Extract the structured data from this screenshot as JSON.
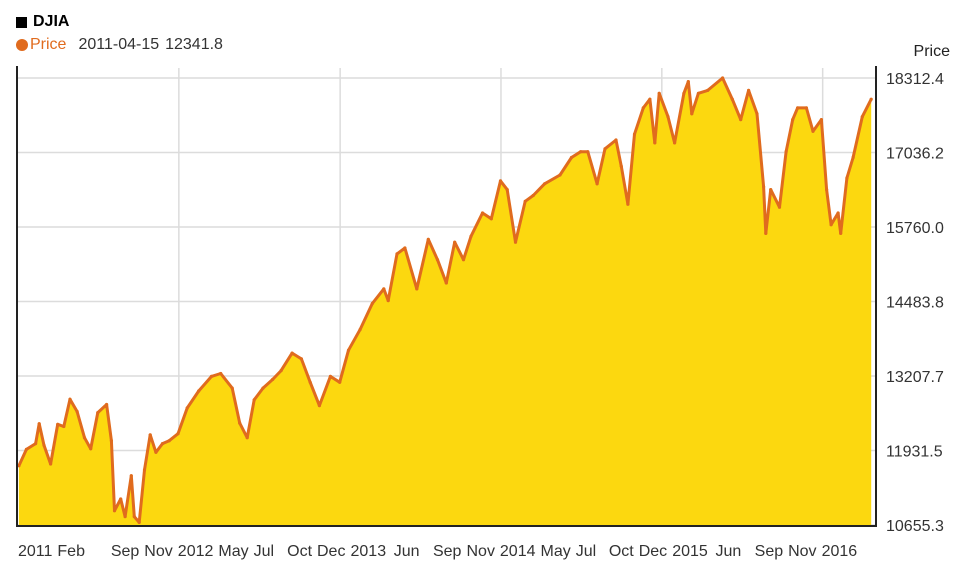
{
  "header": {
    "title": "DJIA",
    "legend": {
      "series_name": "Price",
      "date": "2011-04-15",
      "value": "12341.8"
    }
  },
  "colors": {
    "line": "#e06b1e",
    "fill": "#fcd80f",
    "grid": "#dcdcdc",
    "axis": "#222222",
    "title_swatch": "#000000"
  },
  "chart_data": {
    "type": "area",
    "title": "DJIA",
    "ylabel": "Price",
    "grid": true,
    "legend_position": "top-left",
    "ylim": [
      10655.3,
      18312.4
    ],
    "xlim": [
      "2011-01-01",
      "2016-05-01"
    ],
    "y_ticks": [
      "18312.4",
      "17036.2",
      "15760.0",
      "14483.8",
      "13207.7",
      "11931.5",
      "10655.3"
    ],
    "x_ticks": [
      {
        "label": "2011",
        "date": "2011-01-01"
      },
      {
        "label": "Feb",
        "date": "2011-02-15"
      },
      {
        "label": "Sep",
        "date": "2011-09-01"
      },
      {
        "label": "Nov",
        "date": "2011-11-01"
      },
      {
        "label": "2012",
        "date": "2012-01-01"
      },
      {
        "label": "May",
        "date": "2012-05-01"
      },
      {
        "label": "Jul",
        "date": "2012-07-01"
      },
      {
        "label": "Oct",
        "date": "2012-10-01"
      },
      {
        "label": "Dec",
        "date": "2012-12-01"
      },
      {
        "label": "2013",
        "date": "2013-01-01"
      },
      {
        "label": "Jun",
        "date": "2013-06-01"
      },
      {
        "label": "Sep",
        "date": "2013-09-01"
      },
      {
        "label": "Nov",
        "date": "2013-11-01"
      },
      {
        "label": "2014",
        "date": "2014-01-01"
      },
      {
        "label": "May",
        "date": "2014-05-01"
      },
      {
        "label": "Jul",
        "date": "2014-07-01"
      },
      {
        "label": "Oct",
        "date": "2014-10-01"
      },
      {
        "label": "Dec",
        "date": "2014-12-01"
      },
      {
        "label": "2015",
        "date": "2015-01-01"
      },
      {
        "label": "Jun",
        "date": "2015-06-01"
      },
      {
        "label": "Sep",
        "date": "2015-09-01"
      },
      {
        "label": "Nov",
        "date": "2015-11-01"
      },
      {
        "label": "2016",
        "date": "2016-01-01"
      }
    ],
    "x_grid_dates": [
      "2012-01-01",
      "2013-01-01",
      "2014-01-01",
      "2015-01-01",
      "2016-01-01"
    ],
    "series": [
      {
        "name": "Price",
        "x": [
          "2011-01-03",
          "2011-01-20",
          "2011-02-10",
          "2011-02-18",
          "2011-03-01",
          "2011-03-16",
          "2011-04-01",
          "2011-04-15",
          "2011-04-29",
          "2011-05-15",
          "2011-06-01",
          "2011-06-15",
          "2011-07-01",
          "2011-07-21",
          "2011-08-01",
          "2011-08-08",
          "2011-08-22",
          "2011-09-01",
          "2011-09-15",
          "2011-09-22",
          "2011-10-03",
          "2011-10-15",
          "2011-10-28",
          "2011-11-10",
          "2011-11-25",
          "2011-12-10",
          "2011-12-30",
          "2012-01-20",
          "2012-02-15",
          "2012-03-15",
          "2012-04-05",
          "2012-05-01",
          "2012-05-18",
          "2012-06-04",
          "2012-06-20",
          "2012-07-10",
          "2012-08-01",
          "2012-08-20",
          "2012-09-14",
          "2012-10-05",
          "2012-10-25",
          "2012-11-15",
          "2012-12-10",
          "2012-12-31",
          "2013-01-20",
          "2013-02-15",
          "2013-03-15",
          "2013-04-10",
          "2013-04-20",
          "2013-05-10",
          "2013-05-28",
          "2013-06-24",
          "2013-07-20",
          "2013-08-10",
          "2013-08-30",
          "2013-09-18",
          "2013-10-08",
          "2013-10-25",
          "2013-11-20",
          "2013-12-10",
          "2013-12-31",
          "2014-01-15",
          "2014-02-03",
          "2014-02-25",
          "2014-03-15",
          "2014-04-10",
          "2014-05-15",
          "2014-06-10",
          "2014-07-01",
          "2014-07-17",
          "2014-08-07",
          "2014-08-25",
          "2014-09-19",
          "2014-10-01",
          "2014-10-16",
          "2014-10-31",
          "2014-11-20",
          "2014-12-05",
          "2014-12-16",
          "2014-12-26",
          "2015-01-15",
          "2015-01-30",
          "2015-02-20",
          "2015-03-02",
          "2015-03-10",
          "2015-03-25",
          "2015-04-15",
          "2015-05-19",
          "2015-06-10",
          "2015-06-29",
          "2015-07-17",
          "2015-08-05",
          "2015-08-20",
          "2015-08-25",
          "2015-09-05",
          "2015-09-25",
          "2015-10-10",
          "2015-10-25",
          "2015-11-05",
          "2015-11-25",
          "2015-12-10",
          "2015-12-29",
          "2016-01-10",
          "2016-01-20",
          "2016-02-05",
          "2016-02-11",
          "2016-02-25",
          "2016-03-10",
          "2016-03-31",
          "2016-04-20"
        ],
        "values": [
          11670,
          11950,
          12050,
          12390,
          12020,
          11700,
          12380,
          12341.8,
          12810,
          12600,
          12150,
          11960,
          12580,
          12720,
          12100,
          10900,
          11100,
          10800,
          11500,
          10800,
          10700,
          11600,
          12200,
          11900,
          12050,
          12100,
          12220,
          12660,
          12950,
          13200,
          13250,
          13000,
          12400,
          12150,
          12800,
          13000,
          13150,
          13300,
          13600,
          13500,
          13100,
          12700,
          13200,
          13100,
          13650,
          14000,
          14450,
          14700,
          14500,
          15300,
          15400,
          14700,
          15550,
          15200,
          14800,
          15500,
          15200,
          15600,
          16000,
          15900,
          16550,
          16400,
          15500,
          16200,
          16300,
          16500,
          16650,
          16950,
          17050,
          17050,
          16500,
          17100,
          17250,
          16800,
          16150,
          17350,
          17800,
          17950,
          17200,
          18050,
          17650,
          17200,
          18050,
          18250,
          17700,
          18050,
          18100,
          18312,
          17950,
          17600,
          18100,
          17700,
          16450,
          15650,
          16400,
          16100,
          17050,
          17600,
          17800,
          17800,
          17400,
          17600,
          16400,
          15800,
          16000,
          15650,
          16600,
          16950,
          17650,
          17950
        ]
      }
    ]
  }
}
